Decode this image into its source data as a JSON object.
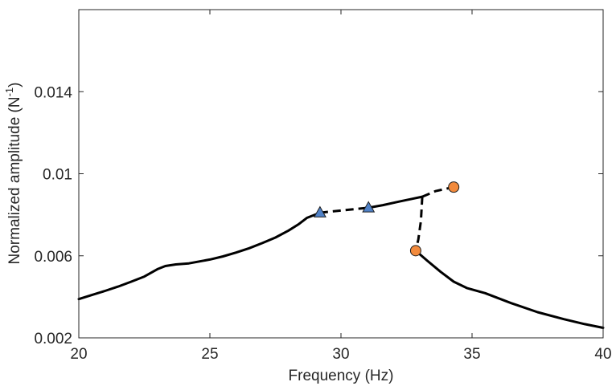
{
  "chart_data": {
    "type": "line",
    "title": "",
    "xlabel": "Frequency (Hz)",
    "ylabel_main": "Normalized amplitude (N",
    "ylabel_sup": "-1",
    "ylabel_close": ")",
    "xlim": [
      20,
      40
    ],
    "ylim": [
      0.002,
      0.018
    ],
    "xticks": [
      20,
      25,
      30,
      35,
      40
    ],
    "xtick_labels": [
      "20",
      "25",
      "30",
      "35",
      "40"
    ],
    "yticks": [
      0.002,
      0.006,
      0.01,
      0.014
    ],
    "ytick_labels": [
      "0.002",
      "0.006",
      "0.01",
      "0.014"
    ],
    "grid": false,
    "series": [
      {
        "style": "solid",
        "color": "#000000",
        "x": [
          20,
          20.5,
          21,
          21.5,
          22,
          22.5,
          23,
          23.3,
          23.7,
          24.2,
          25,
          25.5,
          26,
          26.5,
          27,
          27.5,
          28,
          28.4,
          28.7,
          29.2
        ],
        "y": [
          0.00389,
          0.00409,
          0.00429,
          0.0045,
          0.00474,
          0.00499,
          0.00535,
          0.0055,
          0.00558,
          0.00563,
          0.00582,
          0.00597,
          0.00616,
          0.00637,
          0.00662,
          0.00689,
          0.00723,
          0.00755,
          0.00785,
          0.0081
        ]
      },
      {
        "style": "dashed",
        "color": "#000000",
        "x": [
          29.2,
          29.8,
          30.4,
          31.05
        ],
        "y": [
          0.0081,
          0.00818,
          0.00826,
          0.00834
        ]
      },
      {
        "style": "solid",
        "color": "#000000",
        "x": [
          31.05,
          31.6,
          32.2,
          32.8,
          33.1
        ],
        "y": [
          0.00834,
          0.00847,
          0.00864,
          0.0088,
          0.00888
        ]
      },
      {
        "style": "dashed",
        "color": "#000000",
        "x": [
          33.1,
          33.05,
          32.95,
          32.85
        ],
        "y": [
          0.00888,
          0.0077,
          0.0068,
          0.00625
        ]
      },
      {
        "style": "dashed",
        "color": "#000000",
        "x": [
          33.1,
          33.6,
          34.3
        ],
        "y": [
          0.00888,
          0.00915,
          0.00935
        ]
      },
      {
        "style": "solid",
        "color": "#000000",
        "x": [
          32.85,
          33.3,
          33.8,
          34.3,
          34.8,
          35.5,
          36.5,
          37.5,
          38.5,
          39.3,
          40
        ],
        "y": [
          0.00625,
          0.00575,
          0.00522,
          0.00474,
          0.00443,
          0.00418,
          0.00369,
          0.00325,
          0.00291,
          0.00267,
          0.00249
        ]
      }
    ],
    "markers": [
      {
        "shape": "triangle",
        "color": "#4f81c7",
        "x": 29.2,
        "y": 0.0081
      },
      {
        "shape": "triangle",
        "color": "#4f81c7",
        "x": 31.05,
        "y": 0.00834
      },
      {
        "shape": "circle",
        "color": "#f28a3c",
        "x": 34.3,
        "y": 0.00935
      },
      {
        "shape": "circle",
        "color": "#f28a3c",
        "x": 32.85,
        "y": 0.00625
      }
    ]
  }
}
